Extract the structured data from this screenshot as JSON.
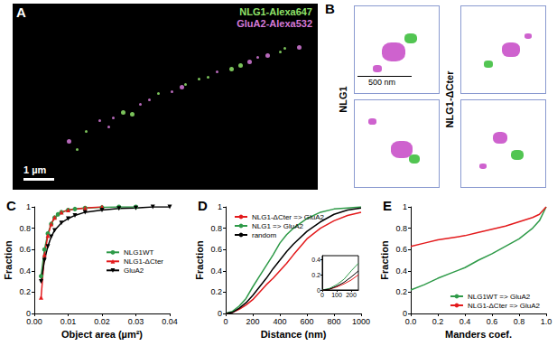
{
  "panels": {
    "A": {
      "title": "A",
      "channels": [
        {
          "name": "NLG1-Alexa647",
          "color": "#8fe36a"
        },
        {
          "name": "GluA2-Alexa532",
          "color": "#d67ad9"
        }
      ],
      "scale_bar": "1 µm"
    },
    "B": {
      "title": "B",
      "rows": [
        "NLG1",
        "NLG1-ΔCter"
      ],
      "scale_bar": "500 nm"
    }
  },
  "chart_data": [
    {
      "type": "line",
      "title": "C",
      "x_label": "Object area (µm²)",
      "y_label": "Fraction",
      "xlim": [
        0,
        0.04
      ],
      "xticks": [
        {
          "value": 0,
          "label": "0.00"
        },
        {
          "value": 0.01,
          "label": "0.01"
        },
        {
          "value": 0.02,
          "label": "0.02"
        },
        {
          "value": 0.03,
          "label": "0.03"
        },
        {
          "value": 0.04,
          "label": "0.04"
        }
      ],
      "ylim": [
        0,
        1
      ],
      "yticks": [
        0,
        0.2,
        0.4,
        0.6,
        0.8,
        1
      ],
      "grid": false,
      "legend": "right",
      "series": [
        {
          "name": "NLG1WT",
          "color": "#2e9a48",
          "marker": "circle",
          "x": [
            0.002,
            0.003,
            0.004,
            0.005,
            0.006,
            0.007,
            0.008,
            0.01,
            0.012,
            0.015,
            0.02,
            0.025,
            0.03
          ],
          "values": [
            0.35,
            0.6,
            0.75,
            0.84,
            0.9,
            0.93,
            0.95,
            0.97,
            0.98,
            0.99,
            0.995,
            1.0,
            1.0
          ]
        },
        {
          "name": "NLG1-ΔCter",
          "color": "#e31a1c",
          "marker": "triangle",
          "x": [
            0.002,
            0.003,
            0.004,
            0.005,
            0.006,
            0.008,
            0.01,
            0.015,
            0.02
          ],
          "values": [
            0.15,
            0.55,
            0.73,
            0.84,
            0.9,
            0.95,
            0.97,
            0.99,
            1.0
          ]
        },
        {
          "name": "GluA2",
          "color": "#000000",
          "marker": "triangle-down",
          "x": [
            0.002,
            0.003,
            0.004,
            0.005,
            0.006,
            0.008,
            0.01,
            0.012,
            0.015,
            0.02,
            0.025,
            0.03,
            0.035,
            0.04
          ],
          "values": [
            0.3,
            0.5,
            0.63,
            0.72,
            0.78,
            0.85,
            0.89,
            0.92,
            0.95,
            0.97,
            0.985,
            0.99,
            1.0,
            1.0
          ]
        }
      ]
    },
    {
      "type": "line",
      "title": "D",
      "x_label": "Distance (nm)",
      "y_label": "Fraction",
      "xlim": [
        0,
        1000
      ],
      "xticks": [
        0,
        200,
        400,
        600,
        800,
        1000
      ],
      "ylim": [
        0,
        1
      ],
      "yticks": [
        0,
        0.2,
        0.4,
        0.6,
        0.8,
        1
      ],
      "grid": false,
      "legend": "upper-left",
      "x": [
        0,
        50,
        100,
        150,
        200,
        250,
        300,
        350,
        400,
        450,
        500,
        600,
        700,
        800,
        900,
        1000
      ],
      "series": [
        {
          "name": "NLG1-ΔCter => GluA2",
          "color": "#e31a1c",
          "values": [
            0,
            0.01,
            0.04,
            0.08,
            0.13,
            0.2,
            0.27,
            0.33,
            0.4,
            0.47,
            0.55,
            0.7,
            0.8,
            0.87,
            0.92,
            0.95
          ]
        },
        {
          "name": "NLG1 => GluA2",
          "color": "#2e9a48",
          "values": [
            0,
            0.02,
            0.07,
            0.14,
            0.25,
            0.35,
            0.45,
            0.55,
            0.66,
            0.74,
            0.8,
            0.89,
            0.95,
            0.98,
            0.99,
            1.0
          ]
        },
        {
          "name": "random",
          "color": "#000000",
          "values": [
            0,
            0.01,
            0.05,
            0.1,
            0.17,
            0.25,
            0.33,
            0.42,
            0.5,
            0.58,
            0.65,
            0.77,
            0.86,
            0.93,
            0.97,
            0.99
          ]
        }
      ]
    },
    {
      "type": "line",
      "title": "E",
      "x_label": "Manders coef.",
      "y_label": "Fraction",
      "xlim": [
        0,
        1
      ],
      "xticks": [
        {
          "value": 0,
          "label": "0.0"
        },
        0.2,
        0.4,
        0.6,
        0.8,
        {
          "value": 1,
          "label": "1.0"
        }
      ],
      "ylim": [
        0,
        1
      ],
      "yticks": [
        0,
        0.2,
        0.4,
        0.6,
        0.8,
        1
      ],
      "grid": false,
      "legend": "lower-right",
      "x": [
        0,
        0.1,
        0.2,
        0.3,
        0.4,
        0.5,
        0.6,
        0.7,
        0.8,
        0.9,
        0.95,
        1.0
      ],
      "series": [
        {
          "name": "NLG1WT => GluA2",
          "color": "#2e9a48",
          "values": [
            0.22,
            0.27,
            0.33,
            0.38,
            0.43,
            0.5,
            0.56,
            0.63,
            0.7,
            0.8,
            0.87,
            1.0
          ]
        },
        {
          "name": "NLG1-ΔCter => GluA2",
          "color": "#e31a1c",
          "values": [
            0.63,
            0.66,
            0.69,
            0.71,
            0.73,
            0.76,
            0.79,
            0.82,
            0.86,
            0.9,
            0.93,
            1.0
          ]
        }
      ]
    },
    {
      "type": "line",
      "xlim": [
        0,
        250
      ],
      "xticks": [
        0,
        100,
        200
      ],
      "ylim": [
        0,
        0.45
      ],
      "yticks": [
        0,
        0.2,
        0.4
      ],
      "grid": false,
      "x": [
        0,
        50,
        100,
        150,
        200,
        250
      ],
      "series": [
        {
          "name": "NLG1-ΔCter => GluA2",
          "color": "#e31a1c",
          "values": [
            0,
            0.01,
            0.04,
            0.08,
            0.13,
            0.2
          ]
        },
        {
          "name": "NLG1 => GluA2",
          "color": "#2e9a48",
          "values": [
            0,
            0.02,
            0.07,
            0.14,
            0.25,
            0.35
          ]
        },
        {
          "name": "random",
          "color": "#000000",
          "values": [
            0,
            0.01,
            0.05,
            0.1,
            0.17,
            0.25
          ]
        }
      ]
    }
  ]
}
